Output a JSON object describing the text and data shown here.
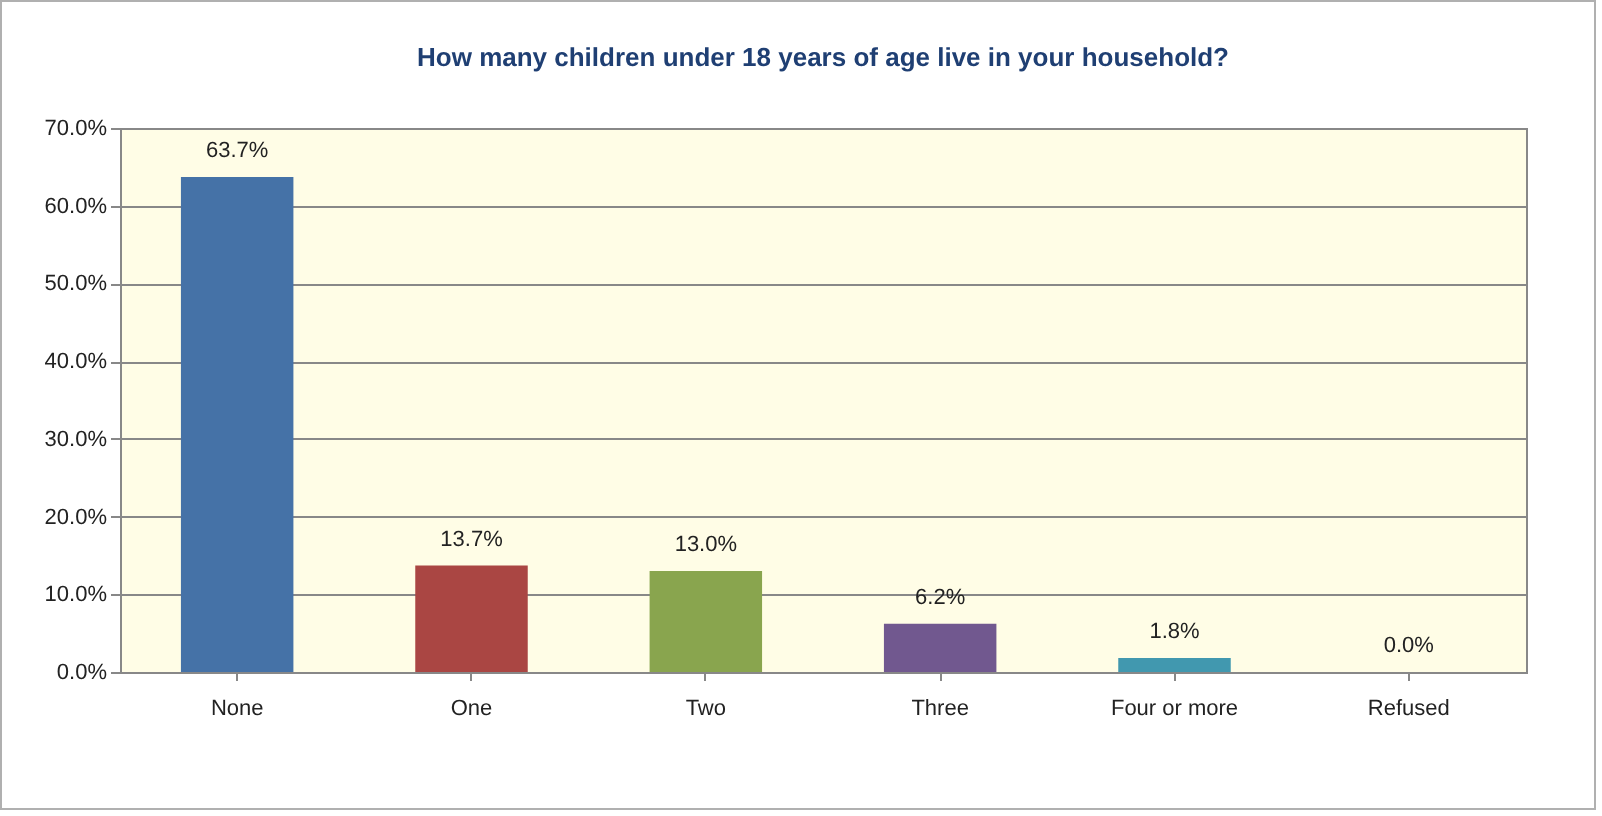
{
  "chart_data": {
    "type": "bar",
    "title": "How many children under 18 years of age live in your household?",
    "categories": [
      "None",
      "One",
      "Two",
      "Three",
      "Four or more",
      "Refused"
    ],
    "values": [
      63.7,
      13.7,
      13.0,
      6.2,
      1.8,
      0.0
    ],
    "colors": [
      "#4572a7",
      "#aa4643",
      "#89a54e",
      "#71588f",
      "#4198af",
      "#db843d"
    ],
    "value_labels": [
      "63.7%",
      "13.7%",
      "13.0%",
      "6.2%",
      "1.8%",
      "0.0%"
    ],
    "ylim": [
      0,
      70
    ],
    "yticks": [
      {
        "value": 0,
        "label": "0.0%"
      },
      {
        "value": 10,
        "label": "10.0%"
      },
      {
        "value": 20,
        "label": "20.0%"
      },
      {
        "value": 30,
        "label": "30.0%"
      },
      {
        "value": 40,
        "label": "40.0%"
      },
      {
        "value": 50,
        "label": "50.0%"
      },
      {
        "value": 60,
        "label": "60.0%"
      },
      {
        "value": 70,
        "label": "70.0%"
      }
    ],
    "grid": "y"
  }
}
